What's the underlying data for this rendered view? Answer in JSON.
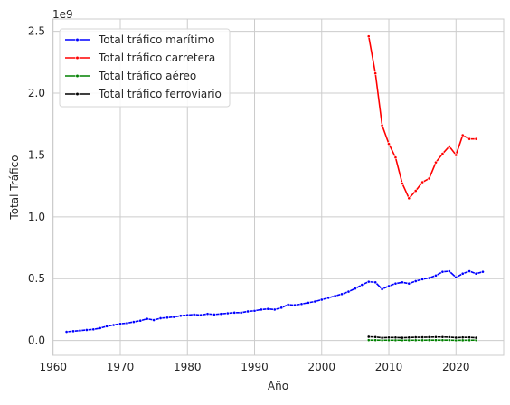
{
  "chart_data": {
    "type": "line",
    "xlabel": "Año",
    "ylabel": "Total Tráfico",
    "offset_label": "1e9",
    "xlim": [
      1959.9,
      2027.1
    ],
    "ylim": [
      -120000000,
      2600000000
    ],
    "x_ticks": [
      1960,
      1970,
      1980,
      1990,
      2000,
      2010,
      2020
    ],
    "y_ticks": [
      0,
      500000000,
      1000000000,
      1500000000,
      2000000000,
      2500000000
    ],
    "y_tick_labels": [
      "0.0",
      "0.5",
      "1.0",
      "1.5",
      "2.0",
      "2.5"
    ],
    "grid": true,
    "legend_position": "top-left",
    "series": [
      {
        "name": "Total tráfico marítimo",
        "color": "#0000ff",
        "x": [
          1962,
          1963,
          1964,
          1965,
          1966,
          1967,
          1968,
          1969,
          1970,
          1971,
          1972,
          1973,
          1974,
          1975,
          1976,
          1977,
          1978,
          1979,
          1980,
          1981,
          1982,
          1983,
          1984,
          1985,
          1986,
          1987,
          1988,
          1989,
          1990,
          1991,
          1992,
          1993,
          1994,
          1995,
          1996,
          1997,
          1998,
          1999,
          2000,
          2001,
          2002,
          2003,
          2004,
          2005,
          2006,
          2007,
          2008,
          2009,
          2010,
          2011,
          2012,
          2013,
          2014,
          2015,
          2016,
          2017,
          2018,
          2019,
          2020,
          2021,
          2022,
          2023,
          2024
        ],
        "values": [
          70000000,
          75000000,
          80000000,
          85000000,
          90000000,
          100000000,
          115000000,
          125000000,
          135000000,
          140000000,
          150000000,
          160000000,
          175000000,
          165000000,
          180000000,
          185000000,
          190000000,
          200000000,
          205000000,
          210000000,
          205000000,
          215000000,
          210000000,
          215000000,
          220000000,
          225000000,
          225000000,
          235000000,
          240000000,
          250000000,
          255000000,
          250000000,
          265000000,
          290000000,
          285000000,
          295000000,
          305000000,
          315000000,
          330000000,
          345000000,
          360000000,
          375000000,
          395000000,
          420000000,
          450000000,
          475000000,
          470000000,
          415000000,
          440000000,
          460000000,
          470000000,
          460000000,
          480000000,
          495000000,
          505000000,
          525000000,
          555000000,
          560000000,
          510000000,
          540000000,
          560000000,
          540000000,
          555000000
        ]
      },
      {
        "name": "Total tráfico carretera",
        "color": "#ff0000",
        "x": [
          2007,
          2008,
          2009,
          2010,
          2011,
          2012,
          2013,
          2014,
          2015,
          2016,
          2017,
          2018,
          2019,
          2020,
          2021,
          2022,
          2023
        ],
        "values": [
          2460000000,
          2160000000,
          1740000000,
          1590000000,
          1480000000,
          1270000000,
          1150000000,
          1210000000,
          1280000000,
          1310000000,
          1440000000,
          1510000000,
          1570000000,
          1500000000,
          1660000000,
          1630000000,
          1630000000
        ]
      },
      {
        "name": "Total tráfico aéreo",
        "color": "#008000",
        "x": [
          2007,
          2008,
          2009,
          2010,
          2011,
          2012,
          2013,
          2014,
          2015,
          2016,
          2017,
          2018,
          2019,
          2020,
          2021,
          2022,
          2023
        ],
        "values": [
          3000000,
          3000000,
          2500000,
          2500000,
          2500000,
          2500000,
          2500000,
          2500000,
          2500000,
          3000000,
          3000000,
          3000000,
          3000000,
          1500000,
          2000000,
          2500000,
          3000000
        ]
      },
      {
        "name": "Total tráfico ferroviario",
        "color": "#000000",
        "x": [
          2007,
          2008,
          2009,
          2010,
          2011,
          2012,
          2013,
          2014,
          2015,
          2016,
          2017,
          2018,
          2019,
          2020,
          2021,
          2022,
          2023
        ],
        "values": [
          30000000,
          28000000,
          22000000,
          24000000,
          24000000,
          22000000,
          24000000,
          26000000,
          26000000,
          27000000,
          28000000,
          28000000,
          27000000,
          23000000,
          25000000,
          25000000,
          22000000
        ]
      }
    ]
  }
}
